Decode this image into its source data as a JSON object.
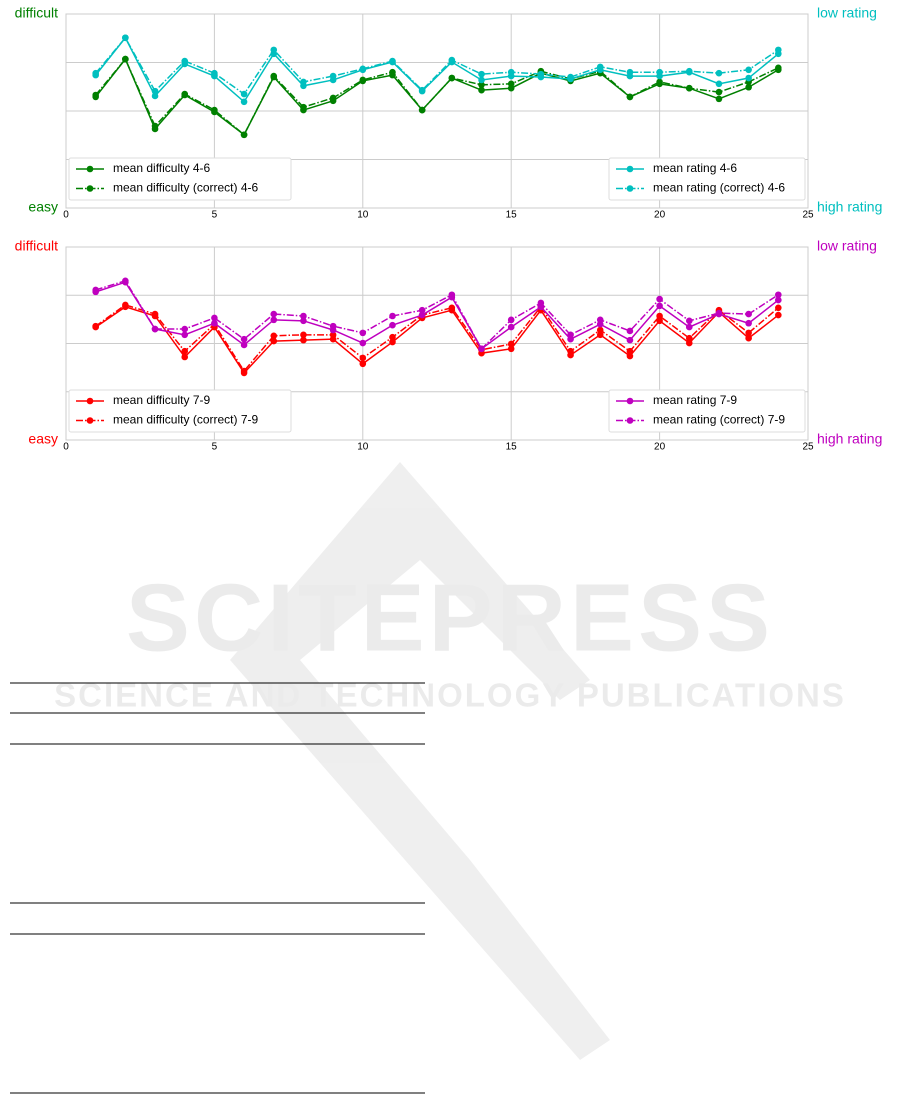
{
  "chart_data": [
    {
      "type": "line",
      "xlim": [
        0,
        25
      ],
      "xticks": [
        0,
        5,
        10,
        15,
        20,
        25
      ],
      "ylim": [
        0,
        4
      ],
      "yticks": [
        0,
        1,
        2,
        3,
        4
      ],
      "grid": true,
      "y_top_label": "difficult",
      "y_bottom_label": "easy",
      "y_label_color": "#008000",
      "y2_top_label": "low rating",
      "y2_bottom_label": "high rating",
      "y2_label_color": "#00bfbf",
      "x": [
        1,
        2,
        3,
        4,
        5,
        6,
        7,
        8,
        9,
        10,
        11,
        12,
        13,
        14,
        15,
        16,
        17,
        18,
        19,
        20,
        21,
        22,
        23,
        24
      ],
      "series": [
        {
          "name": "mean difficulty 4-6",
          "color": "#008000",
          "dash": "solid",
          "legend": "lower left",
          "values": [
            2.29,
            3.07,
            1.63,
            2.33,
            1.98,
            1.51,
            2.7,
            2.02,
            2.21,
            2.62,
            2.74,
            2.02,
            2.68,
            2.43,
            2.47,
            2.78,
            2.62,
            2.78,
            2.29,
            2.56,
            2.47,
            2.25,
            2.49,
            2.85
          ]
        },
        {
          "name": "mean difficulty (correct) 4-6",
          "color": "#008000",
          "dash": "dashdot",
          "legend": "lower left",
          "values": [
            2.33,
            3.07,
            1.69,
            2.35,
            2.02,
            1.51,
            2.72,
            2.08,
            2.27,
            2.64,
            2.8,
            2.02,
            2.68,
            2.54,
            2.56,
            2.82,
            2.66,
            2.82,
            2.29,
            2.6,
            2.47,
            2.39,
            2.6,
            2.89
          ]
        },
        {
          "name": "mean rating 4-6",
          "color": "#00bfbf",
          "dash": "solid",
          "legend": "lower right",
          "values": [
            2.74,
            3.51,
            2.31,
            2.97,
            2.72,
            2.19,
            3.18,
            2.52,
            2.64,
            2.85,
            3.01,
            2.41,
            3.01,
            2.64,
            2.72,
            2.7,
            2.66,
            2.85,
            2.72,
            2.72,
            2.8,
            2.56,
            2.68,
            3.18
          ]
        },
        {
          "name": "mean rating (correct) 4-6",
          "color": "#00bfbf",
          "dash": "dashdot",
          "legend": "lower right",
          "values": [
            2.78,
            3.51,
            2.41,
            3.03,
            2.78,
            2.35,
            3.26,
            2.6,
            2.72,
            2.87,
            3.03,
            2.43,
            3.05,
            2.76,
            2.8,
            2.76,
            2.7,
            2.91,
            2.8,
            2.8,
            2.82,
            2.78,
            2.85,
            3.26
          ]
        }
      ]
    },
    {
      "type": "line",
      "xlim": [
        0,
        25
      ],
      "xticks": [
        0,
        5,
        10,
        15,
        20,
        25
      ],
      "ylim": [
        0,
        4
      ],
      "yticks": [
        0,
        1,
        2,
        3,
        4
      ],
      "grid": true,
      "y_top_label": "difficult",
      "y_bottom_label": "easy",
      "y_label_color": "#ff0000",
      "y2_top_label": "low rating",
      "y2_bottom_label": "high rating",
      "y2_label_color": "#bf00bf",
      "x": [
        1,
        2,
        3,
        4,
        5,
        6,
        7,
        8,
        9,
        10,
        11,
        12,
        13,
        14,
        15,
        16,
        17,
        18,
        19,
        20,
        21,
        22,
        23,
        24
      ],
      "series": [
        {
          "name": "mean difficulty 7-9",
          "color": "#ff0000",
          "dash": "solid",
          "legend": "lower left",
          "values": [
            2.34,
            2.76,
            2.57,
            1.72,
            2.34,
            1.39,
            2.05,
            2.07,
            2.09,
            1.58,
            2.03,
            2.53,
            2.69,
            1.8,
            1.89,
            2.69,
            1.76,
            2.18,
            1.74,
            2.47,
            2.01,
            2.65,
            2.11,
            2.59
          ]
        },
        {
          "name": "mean difficulty (correct) 7-9",
          "color": "#ff0000",
          "dash": "dashdot",
          "legend": "lower left",
          "values": [
            2.36,
            2.8,
            2.61,
            1.84,
            2.4,
            1.43,
            2.16,
            2.18,
            2.18,
            1.7,
            2.13,
            2.59,
            2.74,
            1.87,
            1.99,
            2.76,
            1.84,
            2.28,
            1.84,
            2.57,
            2.11,
            2.69,
            2.22,
            2.74
          ]
        },
        {
          "name": "mean rating 7-9",
          "color": "#bf00bf",
          "dash": "solid",
          "legend": "lower right",
          "values": [
            3.07,
            3.27,
            2.3,
            2.18,
            2.42,
            1.97,
            2.49,
            2.47,
            2.28,
            2.01,
            2.38,
            2.59,
            2.96,
            1.89,
            2.34,
            2.76,
            2.09,
            2.4,
            2.07,
            2.78,
            2.34,
            2.61,
            2.42,
            2.9
          ]
        },
        {
          "name": "mean rating (correct) 7-9",
          "color": "#bf00bf",
          "dash": "dashdot",
          "legend": "lower right",
          "values": [
            3.11,
            3.3,
            2.3,
            2.3,
            2.53,
            2.09,
            2.61,
            2.57,
            2.36,
            2.22,
            2.57,
            2.69,
            3.01,
            1.89,
            2.49,
            2.84,
            2.18,
            2.49,
            2.26,
            2.92,
            2.47,
            2.63,
            2.61,
            3.01
          ]
        }
      ]
    }
  ],
  "watermark": {
    "title": "SCITEPRESS",
    "subtitle": "SCIENCE AND TECHNOLOGY PUBLICATIONS"
  }
}
